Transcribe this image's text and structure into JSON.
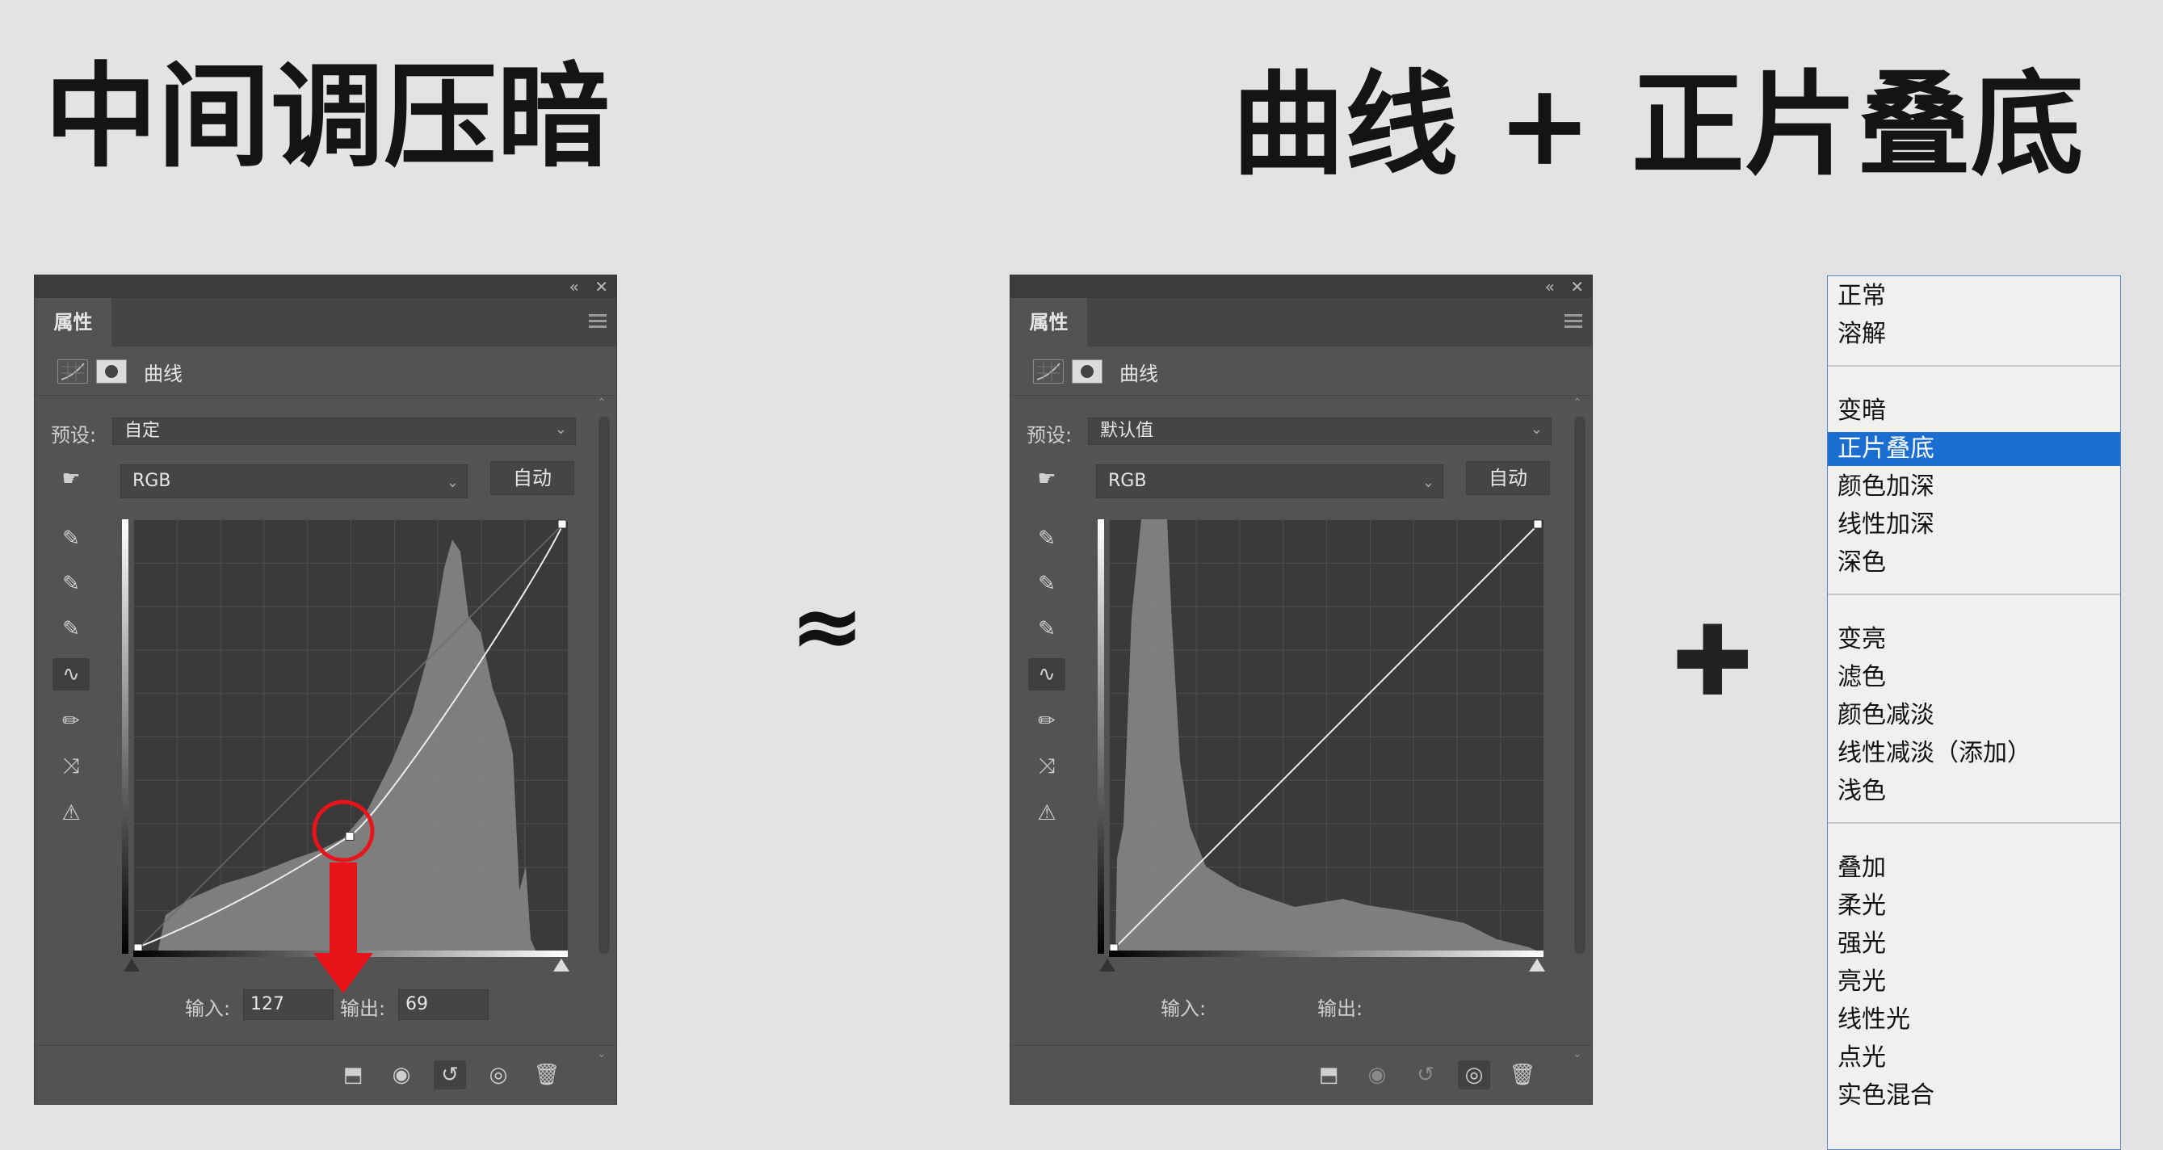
{
  "slide": {
    "title_left": "中间调压暗",
    "title_right": "曲线 + 正片叠底",
    "approx_symbol": "≈",
    "plus_symbol": "✚"
  },
  "panel_left": {
    "tab": "属性",
    "layer_type": "曲线",
    "preset_label": "预设:",
    "preset_value": "自定",
    "channel": "RGB",
    "auto_button": "自动",
    "input_label": "输入:",
    "input_value": "127",
    "output_label": "输出:",
    "output_value": "69",
    "curve_point": {
      "input": 127,
      "output": 69
    },
    "annotation_color": "#e8141a"
  },
  "panel_right": {
    "tab": "属性",
    "layer_type": "曲线",
    "preset_label": "预设:",
    "preset_value": "默认值",
    "channel": "RGB",
    "auto_button": "自动",
    "input_label": "输入:",
    "output_label": "输出:"
  },
  "blend_modes": {
    "selected": "正片叠底",
    "groups": [
      [
        "正常",
        "溶解"
      ],
      [
        "变暗",
        "正片叠底",
        "颜色加深",
        "线性加深",
        "深色"
      ],
      [
        "变亮",
        "滤色",
        "颜色减淡",
        "线性减淡（添加）",
        "浅色"
      ],
      [
        "叠加",
        "柔光",
        "强光",
        "亮光",
        "线性光",
        "点光",
        "实色混合"
      ]
    ],
    "selection_color": "#1b6ed1"
  },
  "icons": {
    "tools": [
      "target-adjust-icon",
      "eyedropper-black-icon",
      "eyedropper-gray-icon",
      "eyedropper-white-icon",
      "curve-points-icon",
      "pencil-icon",
      "smooth-icon",
      "clipping-warning-icon"
    ],
    "bottom": [
      "clip-to-layer-icon",
      "view-previous-icon",
      "reset-icon",
      "visibility-icon",
      "delete-icon"
    ]
  }
}
